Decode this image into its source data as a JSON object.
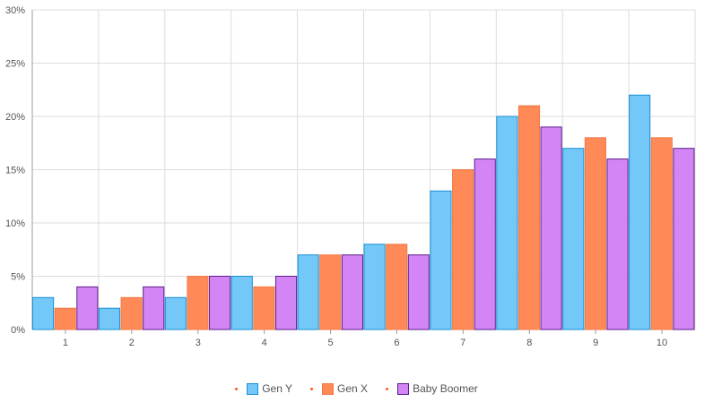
{
  "chart_data": {
    "type": "bar",
    "categories": [
      "1",
      "2",
      "3",
      "4",
      "5",
      "6",
      "7",
      "8",
      "9",
      "10"
    ],
    "series": [
      {
        "name": "Gen Y",
        "values": [
          3,
          2,
          3,
          5,
          7,
          8,
          13,
          20,
          17,
          22
        ],
        "color": "#73c8f8",
        "stroke": "#1a8fd6"
      },
      {
        "name": "Gen X",
        "values": [
          2,
          3,
          5,
          4,
          7,
          8,
          15,
          21,
          18,
          18
        ],
        "color": "#ff8a57",
        "stroke": "#f07a45"
      },
      {
        "name": "Baby Boomer",
        "values": [
          4,
          4,
          5,
          5,
          7,
          7,
          16,
          19,
          16,
          17
        ],
        "color": "#d385f5",
        "stroke": "#5a1f8a"
      }
    ],
    "ylim": [
      0,
      30
    ],
    "yticks": [
      "0%",
      "5%",
      "10%",
      "15%",
      "20%",
      "25%",
      "30%"
    ],
    "grid": true,
    "legend_position": "bottom"
  },
  "legend_marker_color": "#ff5722"
}
